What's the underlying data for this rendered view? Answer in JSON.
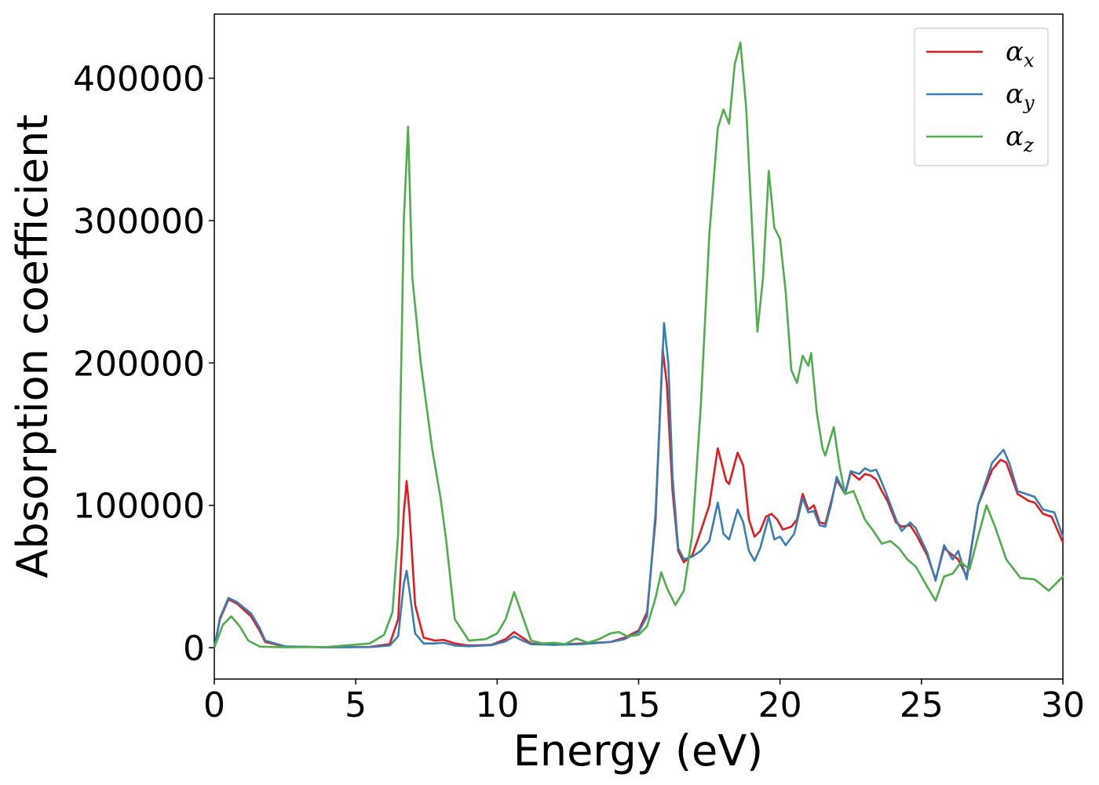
{
  "chart_data": {
    "type": "line",
    "xlabel": "Energy (eV)",
    "ylabel": "Absorption coefficient",
    "xlim": [
      0,
      30
    ],
    "ylim": [
      -22000,
      445000
    ],
    "xticks": [
      0,
      5,
      10,
      15,
      20,
      25,
      30
    ],
    "yticks": [
      0,
      100000,
      200000,
      300000,
      400000
    ],
    "grid": false,
    "legend_position": "top-right",
    "series": [
      {
        "name": "αx",
        "symbol": "α",
        "subscript": "x",
        "color": "#e41a1c",
        "points": [
          [
            0,
            0
          ],
          [
            0.2,
            20000
          ],
          [
            0.5,
            34000
          ],
          [
            0.8,
            31000
          ],
          [
            1.3,
            22000
          ],
          [
            1.6,
            12000
          ],
          [
            1.8,
            4000
          ],
          [
            2.5,
            800
          ],
          [
            4,
            300
          ],
          [
            5.5,
            600
          ],
          [
            6.2,
            2500
          ],
          [
            6.5,
            20000
          ],
          [
            6.7,
            95000
          ],
          [
            6.8,
            117000
          ],
          [
            6.9,
            95000
          ],
          [
            7.1,
            30000
          ],
          [
            7.4,
            7000
          ],
          [
            7.8,
            5000
          ],
          [
            8.1,
            5500
          ],
          [
            8.5,
            3000
          ],
          [
            9,
            1500
          ],
          [
            9.8,
            2000
          ],
          [
            10.3,
            6000
          ],
          [
            10.6,
            11000
          ],
          [
            10.9,
            7000
          ],
          [
            11.2,
            3000
          ],
          [
            12,
            2000
          ],
          [
            13,
            3000
          ],
          [
            14,
            4000
          ],
          [
            14.5,
            7000
          ],
          [
            15,
            12000
          ],
          [
            15.3,
            25000
          ],
          [
            15.6,
            90000
          ],
          [
            15.85,
            210000
          ],
          [
            16,
            185000
          ],
          [
            16.2,
            110000
          ],
          [
            16.4,
            68000
          ],
          [
            16.6,
            60000
          ],
          [
            16.9,
            65000
          ],
          [
            17.2,
            82000
          ],
          [
            17.5,
            100000
          ],
          [
            17.8,
            140000
          ],
          [
            18.1,
            117000
          ],
          [
            18.2,
            115000
          ],
          [
            18.5,
            137000
          ],
          [
            18.7,
            128000
          ],
          [
            18.9,
            90000
          ],
          [
            19.1,
            78000
          ],
          [
            19.3,
            82000
          ],
          [
            19.5,
            92000
          ],
          [
            19.7,
            94000
          ],
          [
            19.9,
            90000
          ],
          [
            20.1,
            83000
          ],
          [
            20.4,
            85000
          ],
          [
            20.6,
            90000
          ],
          [
            20.8,
            108000
          ],
          [
            21.0,
            97000
          ],
          [
            21.2,
            100000
          ],
          [
            21.4,
            88000
          ],
          [
            21.6,
            87000
          ],
          [
            21.8,
            102000
          ],
          [
            22.0,
            118000
          ],
          [
            22.3,
            108000
          ],
          [
            22.5,
            123000
          ],
          [
            22.8,
            118000
          ],
          [
            23.0,
            122000
          ],
          [
            23.2,
            121000
          ],
          [
            23.4,
            118000
          ],
          [
            23.6,
            110000
          ],
          [
            23.8,
            103000
          ],
          [
            24.1,
            88000
          ],
          [
            24.3,
            85000
          ],
          [
            24.6,
            86000
          ],
          [
            24.8,
            80000
          ],
          [
            25.2,
            65000
          ],
          [
            25.5,
            48000
          ],
          [
            25.8,
            70000
          ],
          [
            26.1,
            65000
          ],
          [
            26.3,
            62000
          ],
          [
            26.6,
            50000
          ],
          [
            27.0,
            100000
          ],
          [
            27.5,
            125000
          ],
          [
            27.8,
            132000
          ],
          [
            28.0,
            130000
          ],
          [
            28.4,
            108000
          ],
          [
            28.8,
            103000
          ],
          [
            29.0,
            102000
          ],
          [
            29.3,
            94000
          ],
          [
            29.6,
            92000
          ],
          [
            30,
            74000
          ]
        ]
      },
      {
        "name": "αy",
        "symbol": "α",
        "subscript": "y",
        "color": "#377eb8",
        "points": [
          [
            0,
            0
          ],
          [
            0.2,
            21000
          ],
          [
            0.5,
            35000
          ],
          [
            0.8,
            32000
          ],
          [
            1.3,
            24000
          ],
          [
            1.6,
            14000
          ],
          [
            1.8,
            5000
          ],
          [
            2.5,
            900
          ],
          [
            4,
            300
          ],
          [
            5.5,
            400
          ],
          [
            6.2,
            1500
          ],
          [
            6.5,
            8000
          ],
          [
            6.7,
            45000
          ],
          [
            6.8,
            54000
          ],
          [
            6.9,
            40000
          ],
          [
            7.1,
            10000
          ],
          [
            7.4,
            3000
          ],
          [
            7.8,
            3000
          ],
          [
            8.1,
            3500
          ],
          [
            8.5,
            1500
          ],
          [
            9,
            1000
          ],
          [
            9.8,
            1800
          ],
          [
            10.3,
            4500
          ],
          [
            10.6,
            8000
          ],
          [
            10.9,
            5000
          ],
          [
            11.2,
            2500
          ],
          [
            12,
            2000
          ],
          [
            13,
            2500
          ],
          [
            14,
            4000
          ],
          [
            14.5,
            6000
          ],
          [
            15,
            11000
          ],
          [
            15.3,
            22000
          ],
          [
            15.6,
            95000
          ],
          [
            15.9,
            228000
          ],
          [
            16.05,
            200000
          ],
          [
            16.2,
            120000
          ],
          [
            16.4,
            70000
          ],
          [
            16.6,
            62000
          ],
          [
            16.9,
            64000
          ],
          [
            17.2,
            68000
          ],
          [
            17.5,
            75000
          ],
          [
            17.8,
            102000
          ],
          [
            18.0,
            80000
          ],
          [
            18.2,
            76000
          ],
          [
            18.5,
            97000
          ],
          [
            18.7,
            88000
          ],
          [
            18.9,
            68000
          ],
          [
            19.1,
            61000
          ],
          [
            19.3,
            70000
          ],
          [
            19.6,
            92000
          ],
          [
            19.8,
            76000
          ],
          [
            20.0,
            78000
          ],
          [
            20.2,
            72000
          ],
          [
            20.5,
            80000
          ],
          [
            20.8,
            105000
          ],
          [
            21.0,
            95000
          ],
          [
            21.2,
            96000
          ],
          [
            21.4,
            86000
          ],
          [
            21.6,
            85000
          ],
          [
            21.8,
            100000
          ],
          [
            22.0,
            120000
          ],
          [
            22.3,
            108000
          ],
          [
            22.5,
            124000
          ],
          [
            22.8,
            122000
          ],
          [
            23.0,
            126000
          ],
          [
            23.2,
            124000
          ],
          [
            23.4,
            125000
          ],
          [
            23.6,
            116000
          ],
          [
            23.8,
            106000
          ],
          [
            24.1,
            90000
          ],
          [
            24.3,
            82000
          ],
          [
            24.6,
            88000
          ],
          [
            24.8,
            84000
          ],
          [
            25.2,
            67000
          ],
          [
            25.5,
            47000
          ],
          [
            25.8,
            72000
          ],
          [
            26.1,
            62000
          ],
          [
            26.3,
            68000
          ],
          [
            26.6,
            48000
          ],
          [
            27.0,
            100000
          ],
          [
            27.5,
            130000
          ],
          [
            27.9,
            139000
          ],
          [
            28.1,
            130000
          ],
          [
            28.4,
            110000
          ],
          [
            28.7,
            108000
          ],
          [
            29.0,
            106000
          ],
          [
            29.3,
            97000
          ],
          [
            29.7,
            95000
          ],
          [
            30,
            78000
          ]
        ]
      },
      {
        "name": "αz",
        "symbol": "α",
        "subscript": "z",
        "color": "#4daf4a",
        "points": [
          [
            0,
            0
          ],
          [
            0.3,
            16000
          ],
          [
            0.6,
            22000
          ],
          [
            0.9,
            15000
          ],
          [
            1.2,
            5000
          ],
          [
            1.6,
            800
          ],
          [
            2.5,
            300
          ],
          [
            4,
            500
          ],
          [
            5.5,
            3000
          ],
          [
            6.0,
            9000
          ],
          [
            6.3,
            25000
          ],
          [
            6.5,
            80000
          ],
          [
            6.7,
            300000
          ],
          [
            6.85,
            366000
          ],
          [
            7.0,
            260000
          ],
          [
            7.3,
            200000
          ],
          [
            7.7,
            140000
          ],
          [
            8.0,
            105000
          ],
          [
            8.2,
            75000
          ],
          [
            8.5,
            20000
          ],
          [
            9.0,
            5000
          ],
          [
            9.6,
            6000
          ],
          [
            10.0,
            10000
          ],
          [
            10.3,
            20000
          ],
          [
            10.6,
            39000
          ],
          [
            10.9,
            22000
          ],
          [
            11.2,
            5000
          ],
          [
            11.6,
            3000
          ],
          [
            12.0,
            3500
          ],
          [
            12.4,
            2500
          ],
          [
            12.8,
            6500
          ],
          [
            13.2,
            3500
          ],
          [
            13.6,
            6000
          ],
          [
            14.0,
            10000
          ],
          [
            14.3,
            11000
          ],
          [
            14.6,
            8000
          ],
          [
            15.0,
            9000
          ],
          [
            15.3,
            15000
          ],
          [
            15.6,
            35000
          ],
          [
            15.8,
            53000
          ],
          [
            16.0,
            42000
          ],
          [
            16.3,
            30000
          ],
          [
            16.6,
            40000
          ],
          [
            16.9,
            80000
          ],
          [
            17.2,
            170000
          ],
          [
            17.5,
            290000
          ],
          [
            17.8,
            365000
          ],
          [
            18.0,
            378000
          ],
          [
            18.2,
            368000
          ],
          [
            18.4,
            410000
          ],
          [
            18.6,
            425000
          ],
          [
            18.8,
            380000
          ],
          [
            19.0,
            300000
          ],
          [
            19.2,
            222000
          ],
          [
            19.4,
            260000
          ],
          [
            19.6,
            335000
          ],
          [
            19.8,
            295000
          ],
          [
            20.0,
            287000
          ],
          [
            20.2,
            250000
          ],
          [
            20.4,
            195000
          ],
          [
            20.6,
            186000
          ],
          [
            20.8,
            205000
          ],
          [
            21.0,
            198000
          ],
          [
            21.1,
            207000
          ],
          [
            21.3,
            165000
          ],
          [
            21.5,
            140000
          ],
          [
            21.6,
            135000
          ],
          [
            21.9,
            155000
          ],
          [
            22.1,
            128000
          ],
          [
            22.3,
            108000
          ],
          [
            22.6,
            110000
          ],
          [
            23.0,
            90000
          ],
          [
            23.3,
            82000
          ],
          [
            23.6,
            73000
          ],
          [
            23.9,
            75000
          ],
          [
            24.2,
            70000
          ],
          [
            24.5,
            62000
          ],
          [
            24.8,
            57000
          ],
          [
            25.2,
            43000
          ],
          [
            25.5,
            33000
          ],
          [
            25.8,
            50000
          ],
          [
            26.1,
            52000
          ],
          [
            26.4,
            60000
          ],
          [
            26.7,
            55000
          ],
          [
            27.0,
            78000
          ],
          [
            27.3,
            100000
          ],
          [
            27.6,
            85000
          ],
          [
            28.0,
            62000
          ],
          [
            28.5,
            49000
          ],
          [
            29.0,
            48000
          ],
          [
            29.5,
            40000
          ],
          [
            30,
            50000
          ]
        ]
      }
    ]
  }
}
